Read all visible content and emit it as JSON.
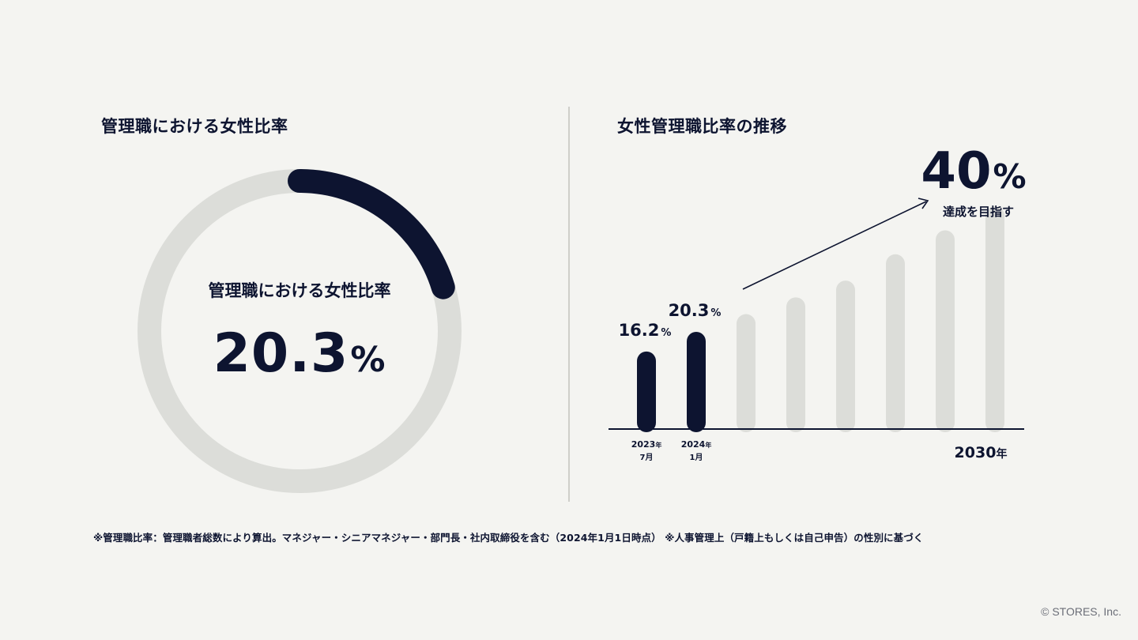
{
  "left": {
    "title": "管理職における女性比率",
    "donut_caption": "管理職における女性比率",
    "donut_value": "20.3",
    "donut_unit": "%"
  },
  "right": {
    "title": "女性管理職比率の推移",
    "goal_value": "40",
    "goal_unit": "%",
    "goal_caption": "達成を目指す"
  },
  "footnote": "※管理職比率：管理職者総数により算出。マネジャー・シニアマネジャー・部門長・社内取締役を含む（2024年1月1日時点） ※人事管理上（戸籍上もしくは自己申告）の性別に基づく",
  "copyright": "© STORES, Inc.",
  "colors": {
    "dark": "#0d1430",
    "light": "#dcddd9",
    "background": "#f4f4f1"
  },
  "chart_data": [
    {
      "type": "pie",
      "values": [
        20.3,
        79.7
      ],
      "label": "管理職における女性比率",
      "value_label": "20.3%"
    },
    {
      "type": "bar",
      "categories": [
        "2023年 7月",
        "2024年 1月",
        "",
        "",
        "",
        "",
        "",
        "2030年"
      ],
      "values": [
        16.2,
        20.3,
        24.0,
        27.5,
        31.0,
        36.5,
        41.5,
        46.5
      ],
      "data_labels": [
        {
          "value": "16.2",
          "unit": "%"
        },
        {
          "value": "20.3",
          "unit": "%"
        },
        null,
        null,
        null,
        null,
        null,
        null
      ],
      "tick_labels": [
        {
          "year": "2023",
          "year_unit": "年",
          "month": "7月"
        },
        {
          "year": "2024",
          "year_unit": "年",
          "month": "1月"
        },
        null,
        null,
        null,
        null,
        null,
        {
          "year": "2030",
          "year_unit": "年",
          "month": ""
        }
      ],
      "actual_count": 2,
      "ylim": [
        0,
        50
      ]
    }
  ]
}
